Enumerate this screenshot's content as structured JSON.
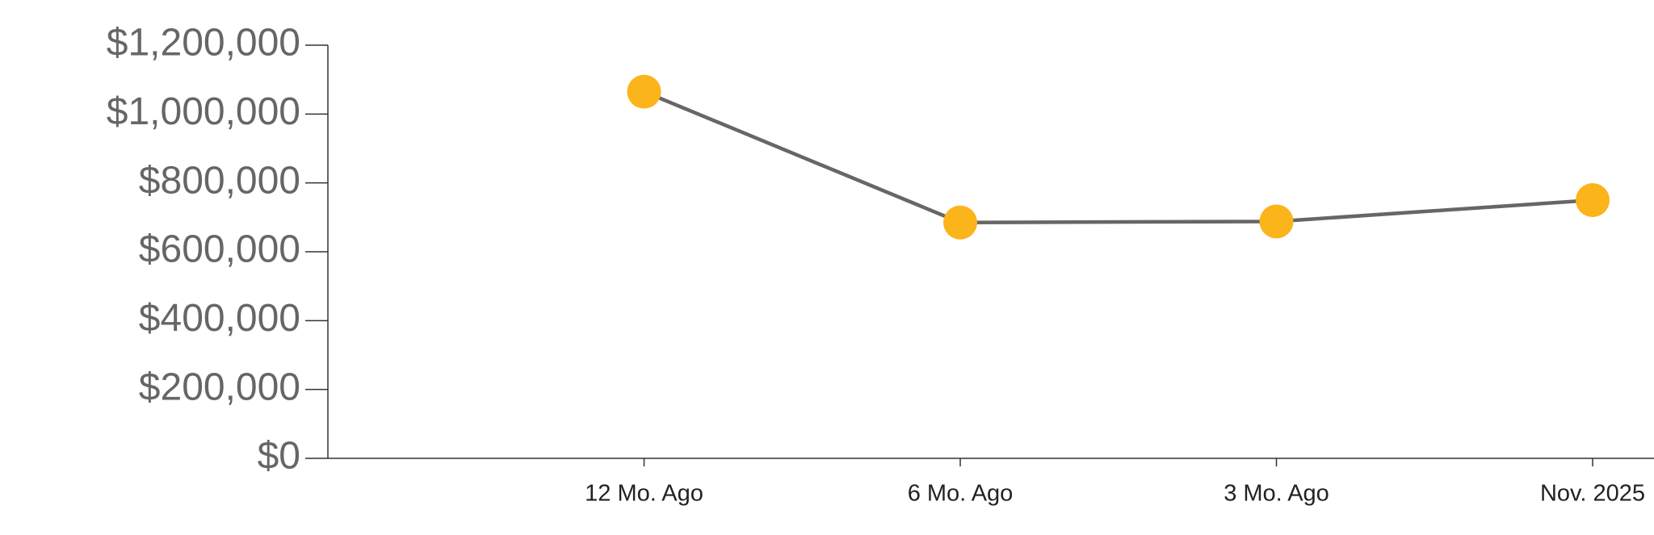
{
  "chart_data": {
    "type": "line",
    "categories": [
      "12 Mo. Ago",
      "6 Mo. Ago",
      "3 Mo. Ago",
      "Nov. 2025"
    ],
    "values": [
      1065000,
      685000,
      688000,
      750000
    ],
    "line_color": "#666666",
    "marker_color": "#fbb41a",
    "ylim": [
      0,
      1200000
    ],
    "yticks": [
      {
        "value": 0,
        "label": "$0"
      },
      {
        "value": 200000,
        "label": "$200,000"
      },
      {
        "value": 400000,
        "label": "$400,000"
      },
      {
        "value": 600000,
        "label": "$600,000"
      },
      {
        "value": 800000,
        "label": "$800,000"
      },
      {
        "value": 1000000,
        "label": "$1,000,000"
      },
      {
        "value": 1200000,
        "label": "$1,200,000"
      }
    ],
    "grid": false
  }
}
